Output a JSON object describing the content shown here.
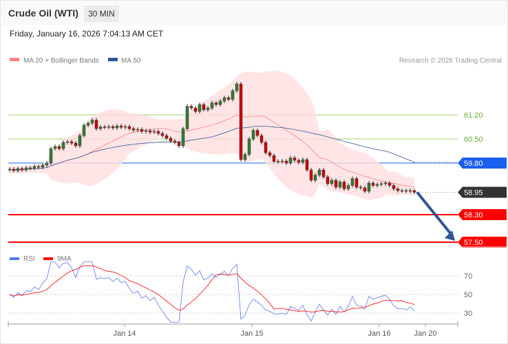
{
  "header": {
    "title": "Crude Oil (WTI)",
    "timeframe": "30 MIN",
    "datetime": "Friday, January 16, 2026 7:04:13 AM CET"
  },
  "legend": {
    "bb": "MA 20 + Bollinger Bands",
    "ma50": "MA 50",
    "credit": "Research © 2026 Trading Central",
    "bb_color": "#ff8080",
    "ma50_color": "#2f5597"
  },
  "levels": [
    {
      "value": "61.20",
      "kind": "resistance-green",
      "color": "#66aa33"
    },
    {
      "value": "60.50",
      "kind": "resistance-green",
      "color": "#66aa33"
    },
    {
      "value": "59.80",
      "kind": "pivot",
      "color": "#1a5ff0"
    },
    {
      "value": "58.95",
      "kind": "last",
      "color": "#333333"
    },
    {
      "value": "58.30",
      "kind": "support",
      "color": "#ff0000"
    },
    {
      "value": "57.50",
      "kind": "support",
      "color": "#ff0000"
    }
  ],
  "rsi_legend": {
    "rsi": "RSI",
    "ma": "9MA",
    "rsi_color": "#5577ee",
    "ma_color": "#ff0000"
  },
  "rsi_levels": [
    "70",
    "50",
    "30"
  ],
  "time_labels": [
    "Jan 14",
    "Jan 15",
    "Jan 16",
    "Jan 20"
  ],
  "chart_data": {
    "type": "candlestick",
    "closes": [
      59.62,
      59.58,
      59.64,
      59.6,
      59.66,
      59.65,
      59.7,
      59.68,
      59.74,
      59.8,
      60.22,
      60.28,
      60.22,
      60.4,
      60.42,
      60.38,
      60.3,
      60.6,
      60.9,
      60.96,
      61.05,
      60.8,
      60.85,
      60.84,
      60.86,
      60.82,
      60.88,
      60.84,
      60.86,
      60.8,
      60.76,
      60.78,
      60.72,
      60.74,
      60.7,
      60.72,
      60.66,
      60.6,
      60.52,
      60.44,
      60.4,
      60.3,
      60.8,
      61.45,
      61.4,
      61.3,
      61.5,
      61.35,
      61.4,
      61.55,
      61.5,
      61.6,
      61.7,
      61.65,
      61.9,
      62.1,
      59.9,
      60.05,
      60.5,
      60.75,
      60.6,
      60.4,
      60.1,
      60.02,
      59.85,
      59.84,
      59.86,
      59.8,
      59.95,
      59.88,
      59.82,
      59.9,
      59.6,
      59.3,
      59.45,
      59.6,
      59.4,
      59.2,
      59.3,
      59.1,
      59.25,
      59.05,
      59.15,
      59.35,
      59.1,
      59.08,
      58.98,
      59.22,
      59.15,
      59.18,
      59.2,
      59.22,
      59.15,
      59.05,
      59.0,
      59.0,
      58.98,
      59.0,
      58.95
    ],
    "first_open": 59.6,
    "forecast_target": 57.5,
    "indicators": [
      "MA 20 + Bollinger Bands",
      "MA 50",
      "RSI",
      "9MA"
    ]
  }
}
